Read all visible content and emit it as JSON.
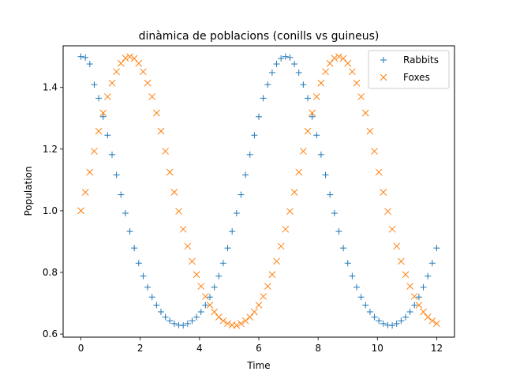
{
  "chart_data": {
    "type": "scatter",
    "title": "dinàmica de poblacions (conills vs guineus)",
    "xlabel": "Time",
    "ylabel": "Population",
    "xlim": [
      -0.6,
      12.6
    ],
    "ylim": [
      0.59,
      1.535
    ],
    "xticks": [
      0,
      2,
      4,
      6,
      8,
      10,
      12
    ],
    "yticks": [
      0.6,
      0.8,
      1.0,
      1.2,
      1.4
    ],
    "xtick_labels": [
      "0",
      "2",
      "4",
      "6",
      "8",
      "10",
      "12"
    ],
    "ytick_labels": [
      "0.6",
      "0.8",
      "1.0",
      "1.2",
      "1.4"
    ],
    "grid": false,
    "legend_position": "top-right",
    "x": [
      0.0,
      0.15,
      0.3,
      0.45,
      0.6,
      0.75,
      0.9,
      1.05,
      1.2,
      1.35,
      1.5,
      1.65,
      1.8,
      1.95,
      2.1,
      2.25,
      2.4,
      2.55,
      2.7,
      2.85,
      3.0,
      3.15,
      3.3,
      3.45,
      3.6,
      3.75,
      3.9,
      4.05,
      4.2,
      4.35,
      4.5,
      4.65,
      4.8,
      4.95,
      5.1,
      5.25,
      5.4,
      5.55,
      5.7,
      5.85,
      6.0,
      6.15,
      6.3,
      6.45,
      6.6,
      6.75,
      6.9,
      7.05,
      7.2,
      7.35,
      7.5,
      7.65,
      7.8,
      7.95,
      8.1,
      8.25,
      8.4,
      8.55,
      8.7,
      8.85,
      9.0,
      9.15,
      9.3,
      9.45,
      9.6,
      9.75,
      9.9,
      10.05,
      10.2,
      10.35,
      10.5,
      10.65,
      10.8,
      10.95,
      11.1,
      11.25,
      11.4,
      11.55,
      11.7,
      11.85,
      12.0
    ],
    "series": [
      {
        "name": "Rabbits",
        "marker": "plus",
        "color": "#1f77b4",
        "values": [
          1.5,
          1.497,
          1.476,
          1.409,
          1.365,
          1.305,
          1.245,
          1.182,
          1.116,
          1.052,
          0.992,
          0.933,
          0.879,
          0.83,
          0.788,
          0.752,
          0.72,
          0.694,
          0.672,
          0.655,
          0.643,
          0.634,
          0.629,
          0.628,
          0.634,
          0.643,
          0.655,
          0.672,
          0.694,
          0.72,
          0.752,
          0.788,
          0.83,
          0.879,
          0.933,
          0.992,
          1.052,
          1.116,
          1.182,
          1.245,
          1.305,
          1.365,
          1.409,
          1.448,
          1.476,
          1.494,
          1.5,
          1.497,
          1.476,
          1.448,
          1.409,
          1.365,
          1.305,
          1.245,
          1.182,
          1.116,
          1.052,
          0.992,
          0.933,
          0.879,
          0.83,
          0.788,
          0.752,
          0.72,
          0.694,
          0.672,
          0.655,
          0.643,
          0.634,
          0.629,
          0.628,
          0.634,
          0.643,
          0.655,
          0.672,
          0.694,
          0.72,
          0.752,
          0.788,
          0.83,
          0.879
        ]
      },
      {
        "name": "Foxes",
        "marker": "x",
        "color": "#ff7f0e",
        "values": [
          1.0,
          1.06,
          1.125,
          1.193,
          1.258,
          1.317,
          1.37,
          1.414,
          1.451,
          1.478,
          1.495,
          1.5,
          1.494,
          1.478,
          1.451,
          1.414,
          1.37,
          1.317,
          1.258,
          1.193,
          1.125,
          1.06,
          0.998,
          0.94,
          0.885,
          0.836,
          0.793,
          0.755,
          0.722,
          0.694,
          0.672,
          0.655,
          0.643,
          0.634,
          0.629,
          0.628,
          0.634,
          0.643,
          0.655,
          0.672,
          0.694,
          0.722,
          0.755,
          0.793,
          0.836,
          0.885,
          0.94,
          0.998,
          1.06,
          1.125,
          1.193,
          1.258,
          1.317,
          1.37,
          1.414,
          1.451,
          1.478,
          1.495,
          1.5,
          1.494,
          1.478,
          1.451,
          1.414,
          1.37,
          1.317,
          1.258,
          1.193,
          1.125,
          1.06,
          0.998,
          0.94,
          0.885,
          0.836,
          0.793,
          0.755,
          0.722,
          0.694,
          0.672,
          0.655,
          0.643,
          0.634
        ]
      }
    ]
  }
}
